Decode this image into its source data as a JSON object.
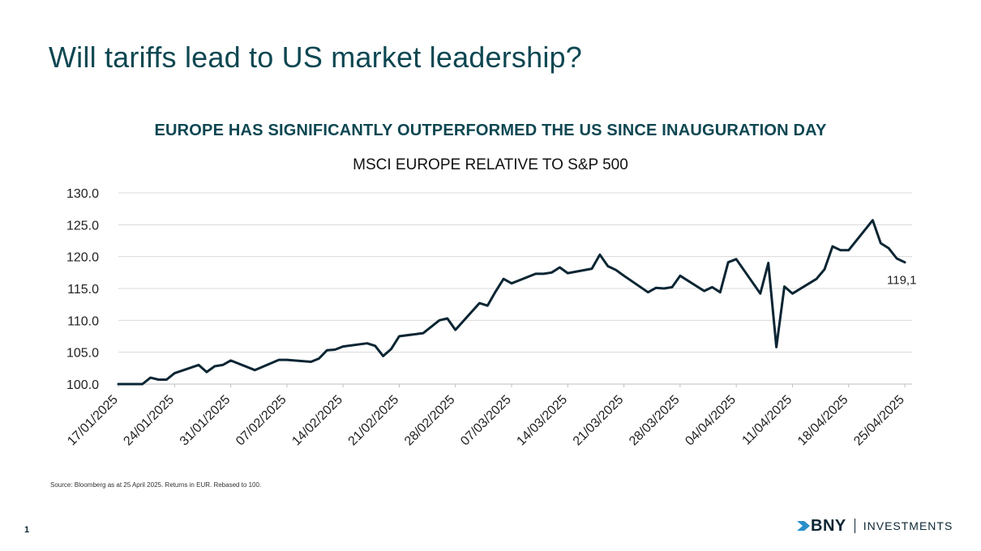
{
  "page": {
    "title": "Will tariffs lead to US market leadership?",
    "source": "Source: Bloomberg as at 25 April 2025. Returns in EUR. Rebased to 100.",
    "page_number": "1"
  },
  "brand": {
    "name": "BNY",
    "sub": "INVESTMENTS",
    "color": "#0b2533",
    "accent": "#0d4752"
  },
  "chart_data": {
    "type": "line",
    "heading": "EUROPE HAS SIGNIFICANTLY OUTPERFORMED THE US SINCE INAUGURATION DAY",
    "title": "MSCI EUROPE RELATIVE TO S&P 500",
    "xlabel": "",
    "ylabel": "",
    "ylim": [
      100,
      130
    ],
    "yticks": [
      "100.0",
      "105.0",
      "110.0",
      "115.0",
      "120.0",
      "125.0",
      "130.0"
    ],
    "ytick_values": [
      100,
      105,
      110,
      115,
      120,
      125,
      130
    ],
    "xtick_labels": [
      "17/01/2025",
      "24/01/2025",
      "31/01/2025",
      "07/02/2025",
      "14/02/2025",
      "21/02/2025",
      "28/02/2025",
      "07/03/2025",
      "14/03/2025",
      "21/03/2025",
      "28/03/2025",
      "04/04/2025",
      "11/04/2025",
      "18/04/2025",
      "25/04/2025"
    ],
    "xtick_days": [
      0,
      7,
      14,
      21,
      28,
      35,
      42,
      49,
      56,
      63,
      70,
      77,
      84,
      91,
      98
    ],
    "xlim": [
      0,
      98
    ],
    "grid": true,
    "end_label": "119,1",
    "line_color": "#0b2533",
    "series": [
      {
        "name": "MSCI Europe relative to S&P 500",
        "x": [
          0,
          3,
          4,
          5,
          6,
          7,
          10,
          11,
          12,
          13,
          14,
          17,
          20,
          21,
          24,
          25,
          26,
          27,
          28,
          31,
          32,
          33,
          34,
          35,
          38,
          39,
          40,
          41,
          42,
          45,
          46,
          47,
          48,
          49,
          52,
          53,
          54,
          55,
          56,
          59,
          60,
          61,
          62,
          63,
          66,
          67,
          68,
          69,
          70,
          73,
          74,
          75,
          76,
          77,
          80,
          81,
          82,
          83,
          84,
          87,
          88,
          89,
          90,
          91,
          94,
          95,
          96,
          97,
          98
        ],
        "y": [
          100.0,
          100.0,
          101.0,
          100.7,
          100.7,
          101.7,
          103.0,
          101.9,
          102.8,
          103.0,
          103.7,
          102.2,
          103.8,
          103.8,
          103.5,
          104.0,
          105.3,
          105.4,
          105.9,
          106.4,
          106.0,
          104.4,
          105.5,
          107.5,
          108.0,
          109.0,
          110.0,
          110.3,
          108.5,
          112.7,
          112.3,
          114.5,
          116.5,
          115.8,
          117.3,
          117.3,
          117.5,
          118.3,
          117.4,
          118.1,
          120.3,
          118.5,
          117.9,
          117.0,
          114.4,
          115.1,
          115.0,
          115.2,
          117.0,
          114.6,
          115.2,
          114.4,
          119.1,
          119.6,
          114.2,
          119.0,
          105.8,
          115.3,
          114.2,
          116.5,
          118.0,
          121.6,
          121.0,
          121.0,
          125.7,
          122.1,
          121.3,
          119.7,
          119.1
        ]
      }
    ]
  }
}
